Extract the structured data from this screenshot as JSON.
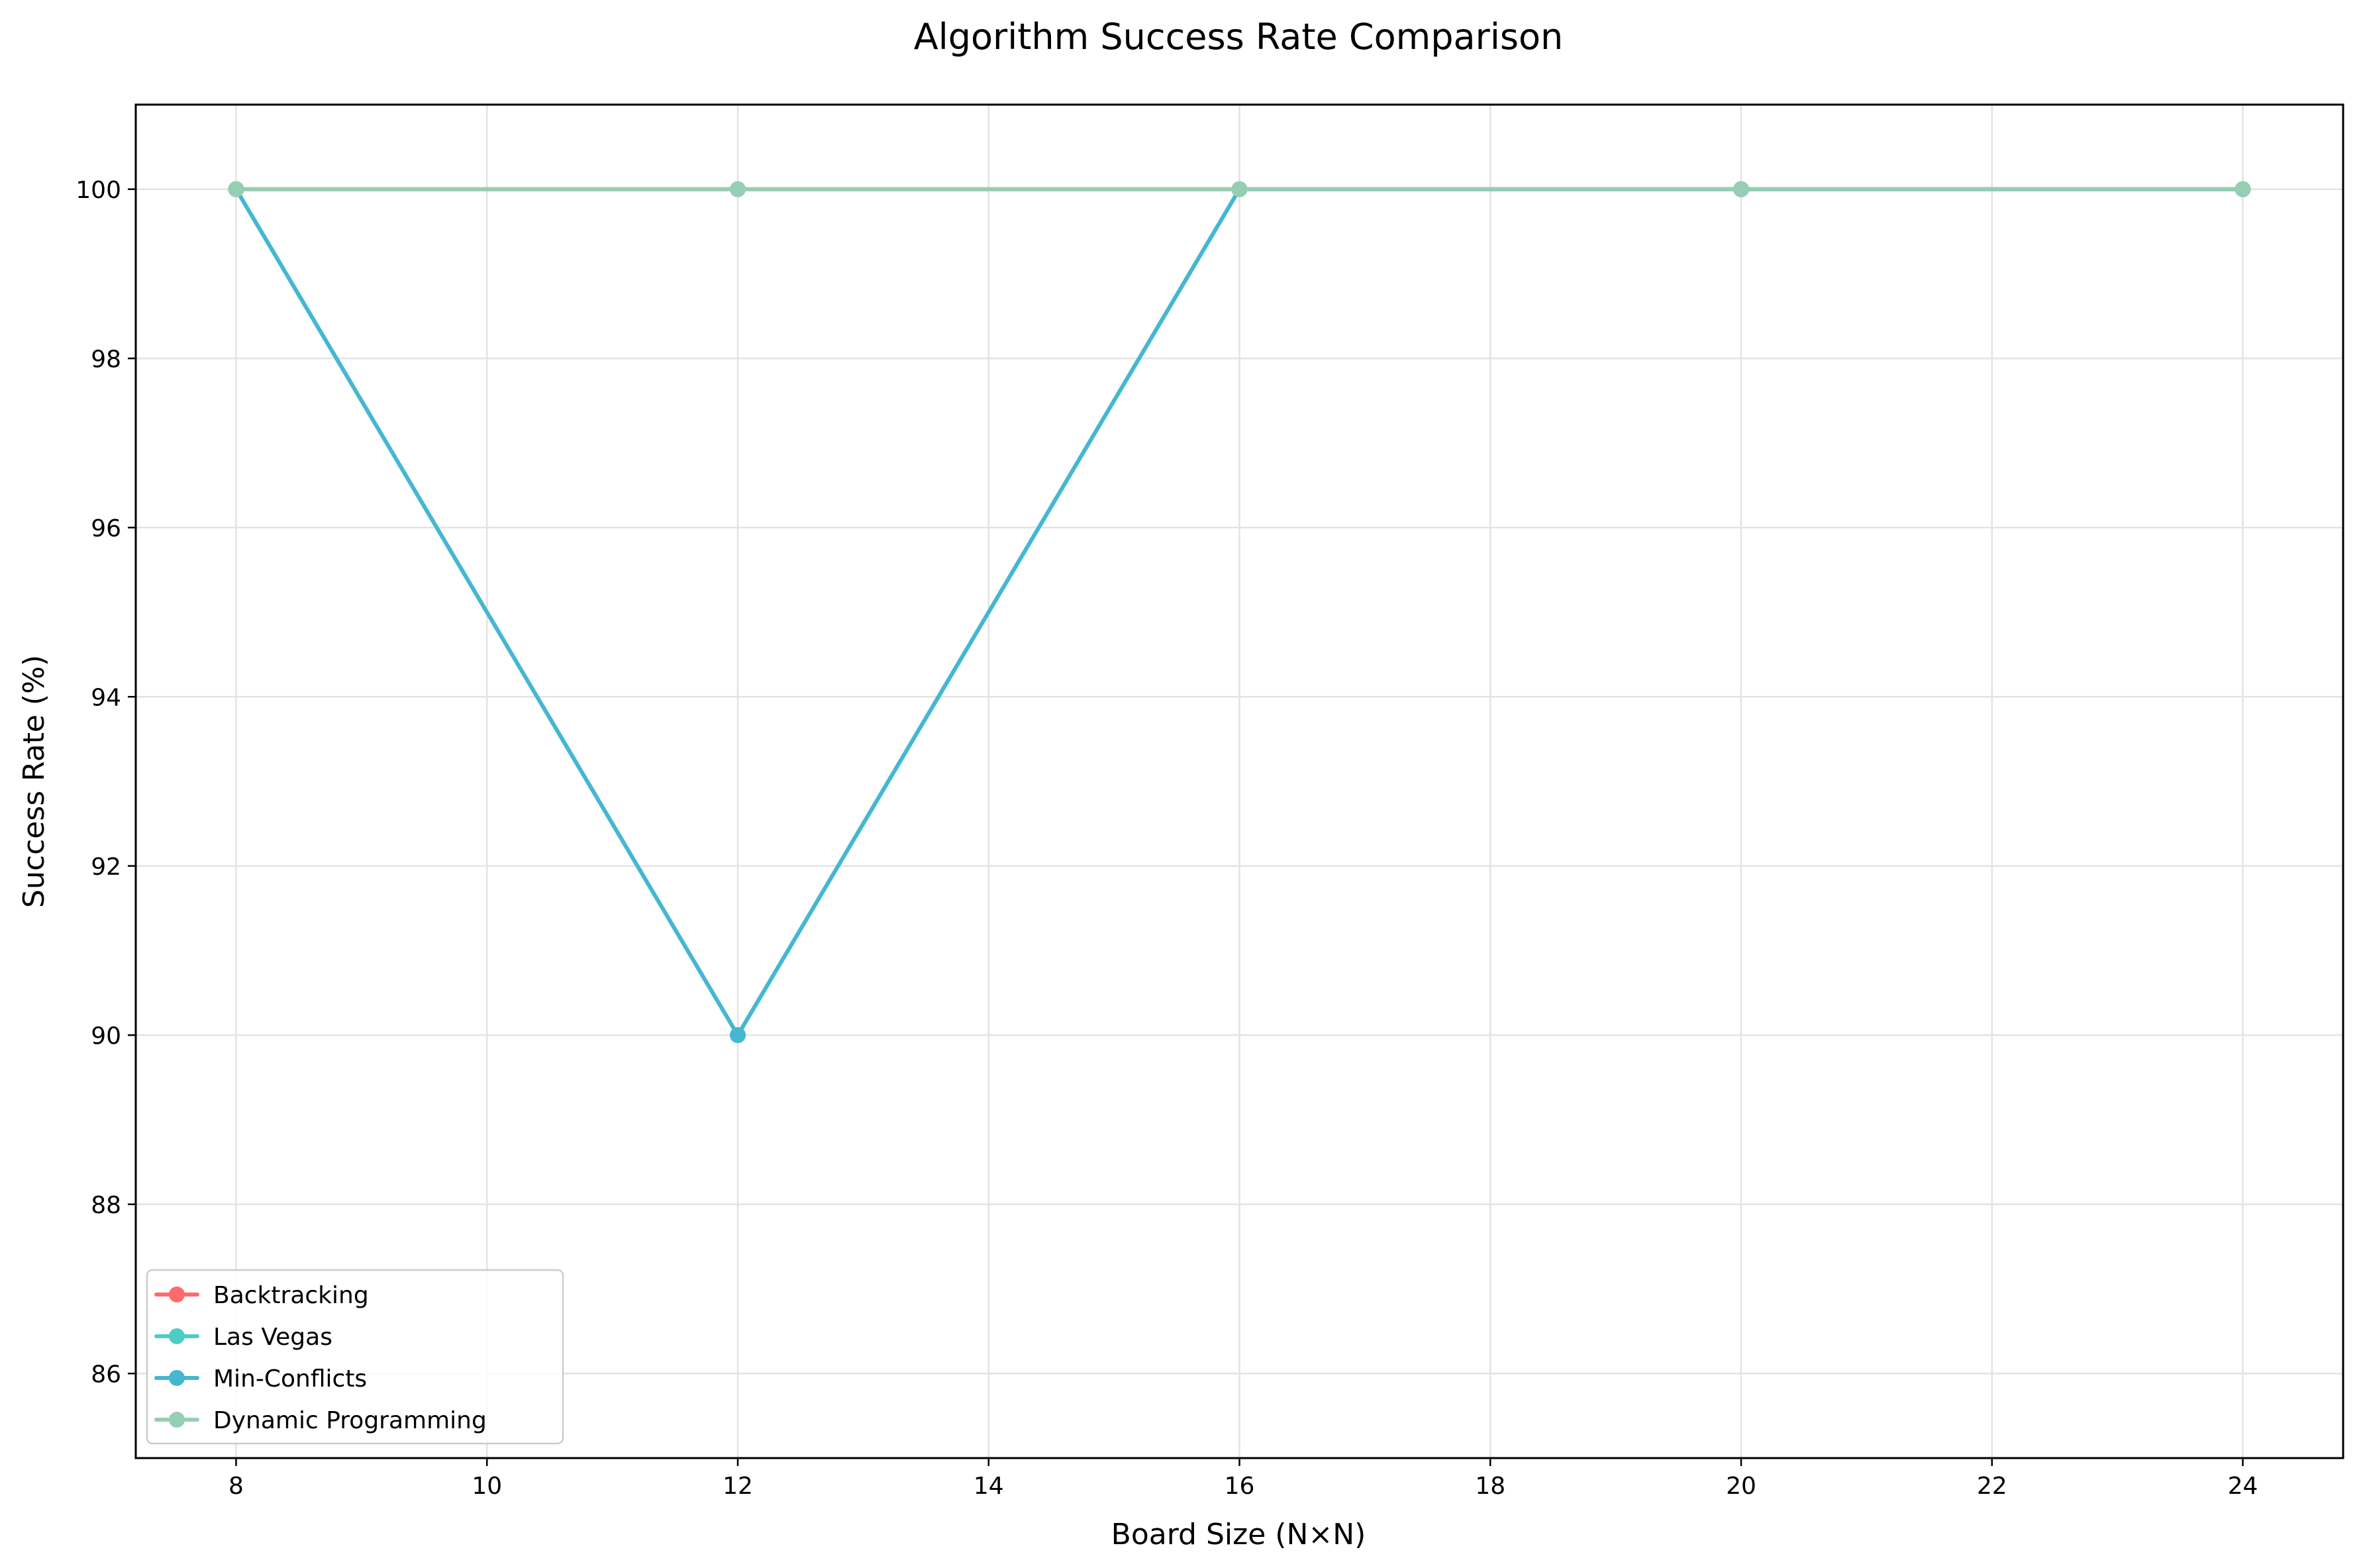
{
  "chart_data": {
    "type": "line",
    "title": "Algorithm Success Rate Comparison",
    "xlabel": "Board Size (N×N)",
    "ylabel": "Success Rate (%)",
    "xlim": [
      7.2,
      24.8
    ],
    "ylim": [
      85,
      101
    ],
    "x_ticks": [
      8,
      10,
      12,
      14,
      16,
      18,
      20,
      22,
      24
    ],
    "y_ticks": [
      86,
      88,
      90,
      92,
      94,
      96,
      98,
      100
    ],
    "grid": true,
    "legend_position": "lower-left",
    "x": [
      8,
      12,
      16,
      20,
      24
    ],
    "series": [
      {
        "name": "Backtracking",
        "color": "#ff6b6b",
        "values": [
          100,
          100,
          100,
          100,
          100
        ]
      },
      {
        "name": "Las Vegas",
        "color": "#4ecdc4",
        "values": [
          100,
          90,
          100,
          100,
          100
        ]
      },
      {
        "name": "Min-Conflicts",
        "color": "#45b7d1",
        "values": [
          100,
          90,
          100,
          100,
          100
        ]
      },
      {
        "name": "Dynamic Programming",
        "color": "#96ceb4",
        "values": [
          100,
          100,
          100,
          100,
          100
        ]
      }
    ]
  }
}
